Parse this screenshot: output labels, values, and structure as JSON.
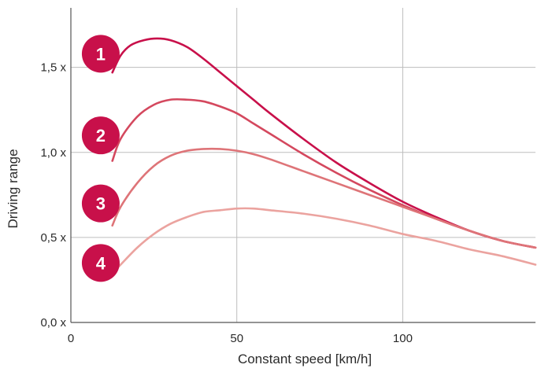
{
  "chart_data": {
    "type": "line",
    "xlabel": "Constant speed [km/h]",
    "ylabel": "Driving range",
    "xlim": [
      0,
      140
    ],
    "ylim": [
      0,
      1.85
    ],
    "x_ticks": [
      0,
      50,
      100
    ],
    "x_tick_labels": [
      "0",
      "50",
      "100"
    ],
    "y_ticks": [
      0,
      0.5,
      1.0,
      1.5
    ],
    "y_tick_labels": [
      "0,0 x",
      "0,5 x",
      "1,0 x",
      "1,5 x"
    ],
    "grid": true,
    "series": [
      {
        "name": "1",
        "color": "#c8104a",
        "x": [
          12.5,
          15,
          18,
          22,
          26,
          30,
          35,
          40,
          45,
          50,
          55,
          60,
          70,
          80,
          90,
          100,
          110,
          120,
          130,
          140
        ],
        "y": [
          1.47,
          1.57,
          1.63,
          1.66,
          1.67,
          1.66,
          1.62,
          1.55,
          1.47,
          1.39,
          1.31,
          1.23,
          1.08,
          0.94,
          0.82,
          0.71,
          0.62,
          0.54,
          0.48,
          0.44
        ]
      },
      {
        "name": "2",
        "color": "#d4485e",
        "x": [
          12.5,
          15,
          20,
          25,
          30,
          35,
          40,
          45,
          50,
          55,
          60,
          70,
          80,
          90,
          100,
          110,
          120,
          130,
          140
        ],
        "y": [
          0.95,
          1.08,
          1.21,
          1.28,
          1.31,
          1.31,
          1.3,
          1.27,
          1.23,
          1.17,
          1.11,
          0.99,
          0.88,
          0.78,
          0.69,
          0.61,
          0.54,
          0.48,
          0.44
        ]
      },
      {
        "name": "3",
        "color": "#de7478",
        "x": [
          12.5,
          15,
          20,
          25,
          30,
          35,
          40,
          45,
          50,
          55,
          60,
          70,
          80,
          90,
          100,
          110,
          120,
          130,
          140
        ],
        "y": [
          0.57,
          0.68,
          0.82,
          0.92,
          0.98,
          1.01,
          1.02,
          1.02,
          1.01,
          0.99,
          0.96,
          0.89,
          0.82,
          0.75,
          0.68,
          0.61,
          0.54,
          0.48,
          0.44
        ]
      },
      {
        "name": "4",
        "color": "#eba39f",
        "x": [
          12.5,
          15,
          20,
          25,
          30,
          35,
          40,
          45,
          50,
          55,
          60,
          70,
          80,
          90,
          100,
          110,
          120,
          130,
          140
        ],
        "y": [
          0.29,
          0.34,
          0.44,
          0.52,
          0.58,
          0.62,
          0.65,
          0.66,
          0.67,
          0.67,
          0.66,
          0.64,
          0.61,
          0.57,
          0.52,
          0.48,
          0.43,
          0.39,
          0.34
        ]
      }
    ],
    "badges": [
      {
        "label": "1",
        "x": 9,
        "y": 1.58,
        "color": "#c8104a"
      },
      {
        "label": "2",
        "x": 9,
        "y": 1.1,
        "color": "#c8104a"
      },
      {
        "label": "3",
        "x": 9,
        "y": 0.7,
        "color": "#c8104a"
      },
      {
        "label": "4",
        "x": 9,
        "y": 0.35,
        "color": "#c8104a"
      }
    ]
  }
}
